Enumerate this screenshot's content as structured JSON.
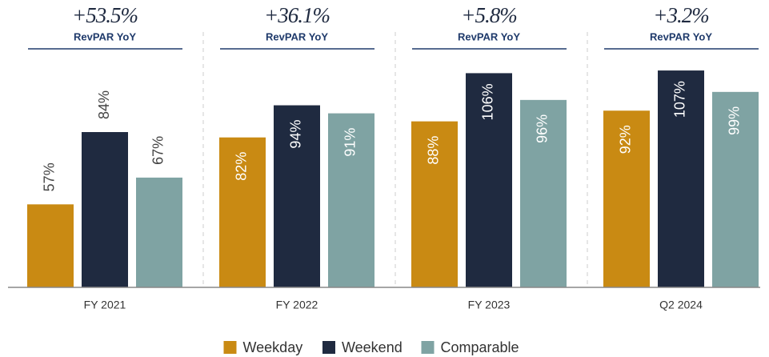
{
  "chart_data": {
    "type": "bar",
    "categories": [
      "FY 2021",
      "FY 2022",
      "FY 2023",
      "Q2 2024"
    ],
    "series": [
      {
        "name": "Weekday",
        "color": "#C98A13",
        "values": [
          57,
          82,
          88,
          92
        ],
        "value_labels": [
          "57%",
          "82%",
          "88%",
          "92%"
        ]
      },
      {
        "name": "Weekend",
        "color": "#1F2A40",
        "values": [
          84,
          94,
          106,
          107
        ],
        "value_labels": [
          "84%",
          "94%",
          "106%",
          "107%"
        ]
      },
      {
        "name": "Comparable",
        "color": "#7FA3A3",
        "values": [
          67,
          91,
          96,
          99
        ],
        "value_labels": [
          "67%",
          "91%",
          "96%",
          "99%"
        ]
      }
    ],
    "annotations": [
      {
        "text": "+53.5%",
        "label": "RevPAR YoY"
      },
      {
        "text": "+36.1%",
        "label": "RevPAR YoY"
      },
      {
        "text": "+5.8%",
        "label": "RevPAR YoY"
      },
      {
        "text": "+3.2%",
        "label": "RevPAR YoY"
      }
    ],
    "ylim": [
      26,
      113
    ],
    "legend": "bottom"
  }
}
